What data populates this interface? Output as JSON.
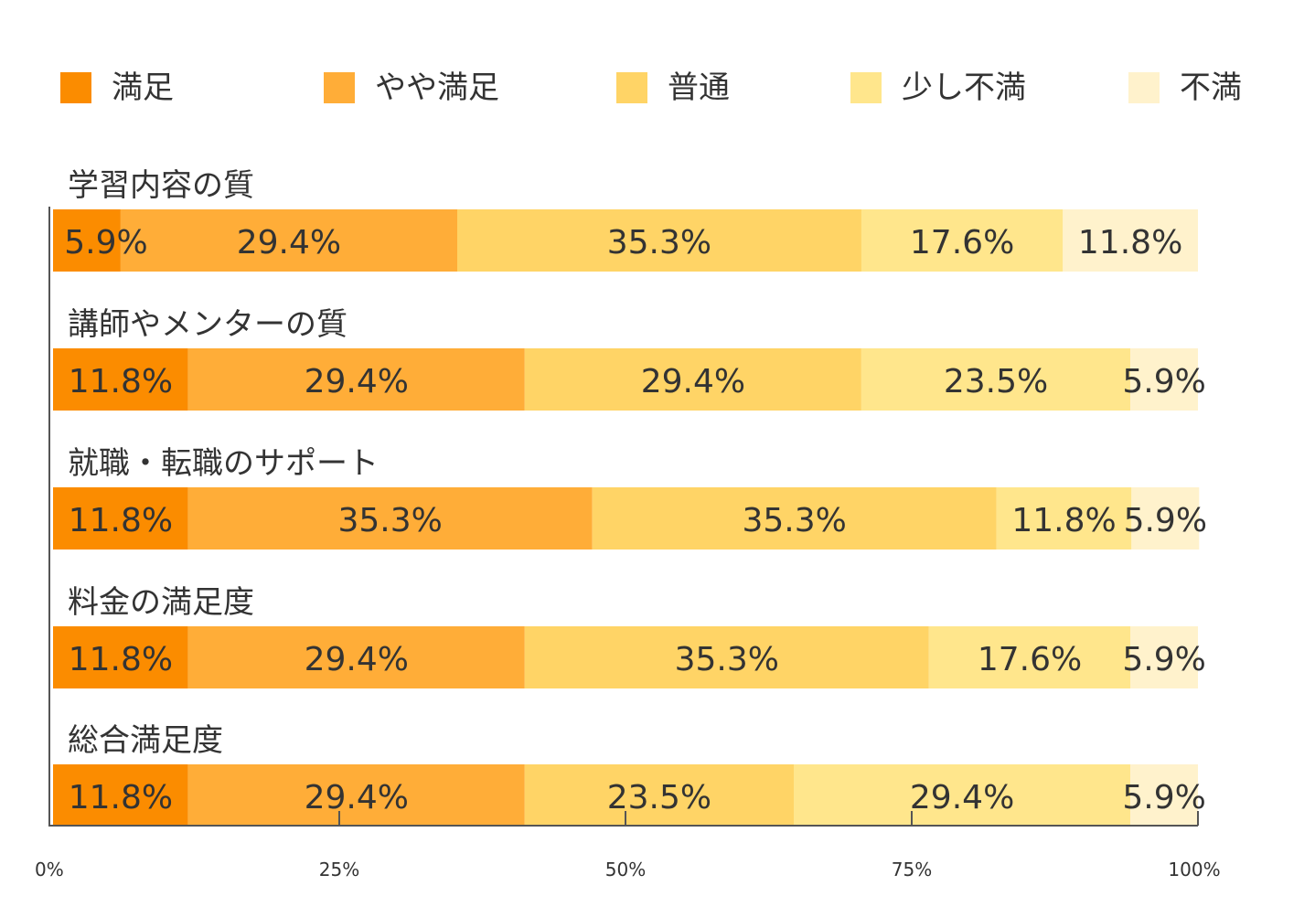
{
  "chart_data": {
    "type": "stacked-bar-horizontal",
    "legend": [
      {
        "name": "満足",
        "color": "#fb8c00"
      },
      {
        "name": "やや満足",
        "color": "#ffad38"
      },
      {
        "name": "普通",
        "color": "#ffd466"
      },
      {
        "name": "少し不満",
        "color": "#ffe68c"
      },
      {
        "name": "不満",
        "color": "#fff2cc"
      }
    ],
    "categories": [
      "学習内容の質",
      "講師やメンターの質",
      "就職・転職のサポート",
      "料金の満足度",
      "総合満足度"
    ],
    "rows": [
      {
        "values": [
          5.9,
          29.4,
          35.3,
          17.6,
          11.8
        ],
        "labels": [
          "5.9%",
          "29.4%",
          "35.3%",
          "17.6%",
          "11.8%"
        ]
      },
      {
        "values": [
          11.8,
          29.4,
          29.4,
          23.5,
          5.9
        ],
        "labels": [
          "11.8%",
          "29.4%",
          "29.4%",
          "23.5%",
          "5.9%"
        ]
      },
      {
        "values": [
          11.8,
          35.3,
          35.3,
          11.8,
          5.9
        ],
        "labels": [
          "11.8%",
          "35.3%",
          "35.3%",
          "11.8%",
          "5.9%"
        ]
      },
      {
        "values": [
          11.8,
          29.4,
          35.3,
          17.6,
          5.9
        ],
        "labels": [
          "11.8%",
          "29.4%",
          "35.3%",
          "17.6%",
          "5.9%"
        ]
      },
      {
        "values": [
          11.8,
          29.4,
          23.5,
          29.4,
          5.9
        ],
        "labels": [
          "11.8%",
          "29.4%",
          "23.5%",
          "29.4%",
          "5.9%"
        ]
      }
    ],
    "x_ticks": [
      {
        "value": 0,
        "label": "0%"
      },
      {
        "value": 25,
        "label": "25%"
      },
      {
        "value": 50,
        "label": "50%"
      },
      {
        "value": 75,
        "label": "75%"
      },
      {
        "value": 100,
        "label": "100%"
      }
    ],
    "xlim": [
      0,
      100
    ]
  }
}
